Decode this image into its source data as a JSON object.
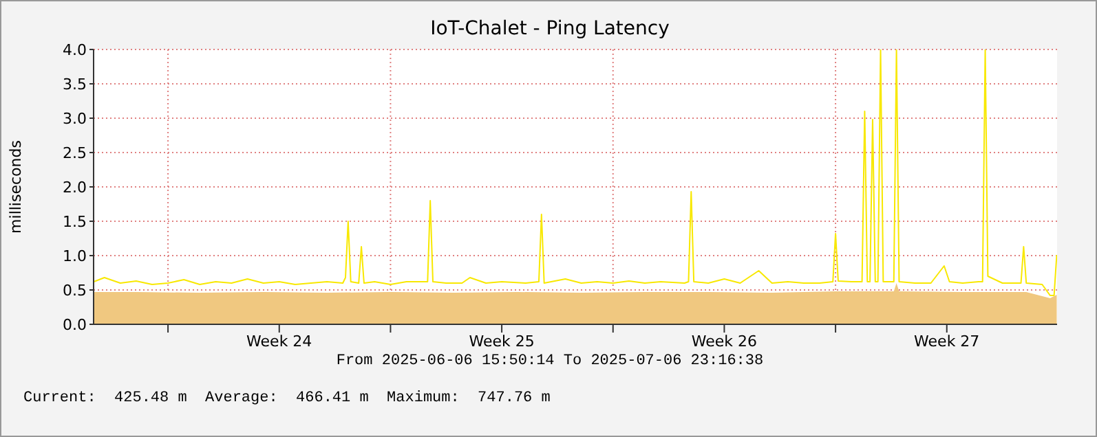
{
  "chart_data": {
    "type": "line",
    "title": "IoT-Chalet - Ping Latency",
    "ylabel": "milliseconds",
    "annotations": [
      "From 2025-06-06 15:50:14 To 2025-07-06 23:16:38",
      "Current:  425.48 m  Average:  466.41 m  Maximum:  747.76 m"
    ],
    "xlim": [
      "2025-06-06T15:50",
      "2025-07-06T23:16"
    ],
    "xticks": [
      {
        "value": "2025-06-09T00:00",
        "label": null
      },
      {
        "value": "2025-06-12T12:00",
        "label": "Week 24"
      },
      {
        "value": "2025-06-16T00:00",
        "label": null
      },
      {
        "value": "2025-06-19T12:00",
        "label": "Week 25"
      },
      {
        "value": "2025-06-23T00:00",
        "label": null
      },
      {
        "value": "2025-06-26T12:00",
        "label": "Week 26"
      },
      {
        "value": "2025-06-30T00:00",
        "label": null
      },
      {
        "value": "2025-07-03T12:00",
        "label": "Week 27"
      }
    ],
    "ylim": [
      0,
      4
    ],
    "yticks": [
      {
        "value": 0,
        "label": "0.0"
      },
      {
        "value": 0.5,
        "label": "0.5"
      },
      {
        "value": 1,
        "label": "1.0"
      },
      {
        "value": 1.5,
        "label": "1.5"
      },
      {
        "value": 2,
        "label": "2.0"
      },
      {
        "value": 2.5,
        "label": "2.5"
      },
      {
        "value": 3,
        "label": "3.0"
      },
      {
        "value": 3.5,
        "label": "3.5"
      },
      {
        "value": 4,
        "label": "4.0"
      }
    ],
    "grid": true,
    "series": [
      {
        "type": "area",
        "color": "#f0c880",
        "x": [
          "2025-06-06T16:00",
          "2025-06-08T00:00",
          "2025-06-10T00:00",
          "2025-06-12T00:00",
          "2025-06-14T00:00",
          "2025-06-16T00:00",
          "2025-06-18T00:00",
          "2025-06-20T00:00",
          "2025-06-22T00:00",
          "2025-06-24T00:00",
          "2025-06-26T00:00",
          "2025-06-28T00:00",
          "2025-06-30T00:00",
          "2025-07-01T20:00",
          "2025-07-01T22:00",
          "2025-07-02T00:00",
          "2025-07-04T00:00",
          "2025-07-06T00:00",
          "2025-07-06T18:00",
          "2025-07-06T23:00"
        ],
        "values": [
          0.47,
          0.47,
          0.46,
          0.47,
          0.46,
          0.47,
          0.46,
          0.47,
          0.46,
          0.47,
          0.47,
          0.46,
          0.48,
          0.48,
          0.6,
          0.48,
          0.47,
          0.47,
          0.38,
          0.43
        ]
      },
      {
        "type": "line",
        "color": "#f8e800",
        "x": [
          "2025-06-06T16:00",
          "2025-06-07T00:00",
          "2025-06-07T12:00",
          "2025-06-08T00:00",
          "2025-06-08T12:00",
          "2025-06-09T00:00",
          "2025-06-09T12:00",
          "2025-06-10T00:00",
          "2025-06-10T12:00",
          "2025-06-11T00:00",
          "2025-06-11T12:00",
          "2025-06-12T00:00",
          "2025-06-12T12:00",
          "2025-06-13T00:00",
          "2025-06-13T12:00",
          "2025-06-14T00:00",
          "2025-06-14T12:00",
          "2025-06-14T14:00",
          "2025-06-14T16:00",
          "2025-06-14T18:00",
          "2025-06-15T00:00",
          "2025-06-15T02:00",
          "2025-06-15T04:00",
          "2025-06-15T12:00",
          "2025-06-16T00:00",
          "2025-06-16T12:00",
          "2025-06-17T04:00",
          "2025-06-17T06:00",
          "2025-06-17T08:00",
          "2025-06-17T18:00",
          "2025-06-18T06:00",
          "2025-06-18T12:00",
          "2025-06-19T00:00",
          "2025-06-19T12:00",
          "2025-06-20T06:00",
          "2025-06-20T16:00",
          "2025-06-20T18:00",
          "2025-06-20T20:00",
          "2025-06-21T12:00",
          "2025-06-22T00:00",
          "2025-06-22T12:00",
          "2025-06-23T00:00",
          "2025-06-23T12:00",
          "2025-06-24T00:00",
          "2025-06-24T12:00",
          "2025-06-25T06:00",
          "2025-06-25T09:00",
          "2025-06-25T11:00",
          "2025-06-25T13:00",
          "2025-06-26T00:00",
          "2025-06-26T12:00",
          "2025-06-27T00:00",
          "2025-06-27T14:00",
          "2025-06-28T00:00",
          "2025-06-28T12:00",
          "2025-06-29T00:00",
          "2025-06-29T12:00",
          "2025-06-29T22:00",
          "2025-06-30T00:00",
          "2025-06-30T02:00",
          "2025-06-30T12:00",
          "2025-06-30T20:00",
          "2025-06-30T22:00",
          "2025-07-01T00:00",
          "2025-07-01T02:00",
          "2025-07-01T04:00",
          "2025-07-01T06:00",
          "2025-07-01T08:00",
          "2025-07-01T10:00",
          "2025-07-01T12:00",
          "2025-07-01T20:00",
          "2025-07-01T22:00",
          "2025-07-02T00:00",
          "2025-07-02T12:00",
          "2025-07-03T00:00",
          "2025-07-03T10:00",
          "2025-07-03T14:00",
          "2025-07-04T00:00",
          "2025-07-04T12:00",
          "2025-07-04T15:00",
          "2025-07-04T17:00",
          "2025-07-04T19:00",
          "2025-07-05T06:00",
          "2025-07-05T12:00",
          "2025-07-05T20:00",
          "2025-07-05T22:00",
          "2025-07-06T00:00",
          "2025-07-06T12:00",
          "2025-07-06T18:00",
          "2025-07-06T21:00",
          "2025-07-06T23:00"
        ],
        "values": [
          0.62,
          0.68,
          0.6,
          0.63,
          0.58,
          0.6,
          0.65,
          0.58,
          0.62,
          0.6,
          0.66,
          0.6,
          0.62,
          0.58,
          0.6,
          0.62,
          0.6,
          0.68,
          1.5,
          0.62,
          0.6,
          1.13,
          0.6,
          0.62,
          0.58,
          0.62,
          0.62,
          1.8,
          0.62,
          0.6,
          0.6,
          0.68,
          0.6,
          0.62,
          0.6,
          0.62,
          1.6,
          0.6,
          0.66,
          0.6,
          0.62,
          0.6,
          0.63,
          0.6,
          0.62,
          0.6,
          0.62,
          1.93,
          0.62,
          0.6,
          0.66,
          0.6,
          0.78,
          0.6,
          0.62,
          0.6,
          0.6,
          0.62,
          1.32,
          0.63,
          0.62,
          0.62,
          3.1,
          0.62,
          0.62,
          2.98,
          0.62,
          0.62,
          4.0,
          0.62,
          0.62,
          4.0,
          0.62,
          0.6,
          0.6,
          0.85,
          0.62,
          0.6,
          0.62,
          0.62,
          4.0,
          0.7,
          0.6,
          0.6,
          0.6,
          1.13,
          0.6,
          0.58,
          0.42,
          0.42,
          1.01
        ]
      }
    ]
  }
}
